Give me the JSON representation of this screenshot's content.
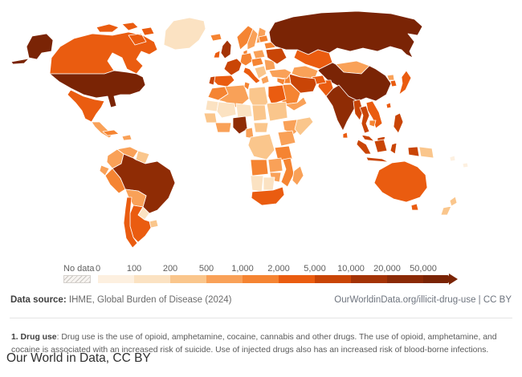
{
  "chart_data": {
    "type": "heatmap",
    "subtype": "choropleth-world-map",
    "topic": "illicit-drug-use",
    "legend": {
      "no_data_label": "No data",
      "bin_edges": [
        "0",
        "100",
        "200",
        "500",
        "1,000",
        "2,000",
        "5,000",
        "10,000",
        "20,000",
        "50,000"
      ],
      "bin_colors": [
        "#fdf0e0",
        "#fbe2c2",
        "#fac68c",
        "#f9a158",
        "#f58432",
        "#ea5c10",
        "#c94506",
        "#a43306",
        "#8b2a06"
      ],
      "arrow_color": "#7a2405",
      "legend_position": "bottom-left",
      "scale": "log-binned"
    },
    "regions": {
      "greenland": {
        "name": "Greenland",
        "color": "#fbe2c2",
        "band": "100-200"
      },
      "canada": {
        "name": "Canada",
        "color": "#ea5c10",
        "band": "2,000-5,000"
      },
      "united_states": {
        "name": "United States",
        "color": "#7a2405",
        "band": ">50,000"
      },
      "mexico": {
        "name": "Mexico",
        "color": "#ea5c10",
        "band": "2,000-5,000"
      },
      "central_america": {
        "name": "Central America",
        "color": "#f9a158",
        "band": "500-1,000"
      },
      "cuba": {
        "name": "Cuba",
        "color": "#f58432",
        "band": "1,000-2,000"
      },
      "hispaniola": {
        "name": "Hispaniola",
        "color": "#f9a158",
        "band": "500-1,000"
      },
      "colombia": {
        "name": "Colombia",
        "color": "#f9a158",
        "band": "500-1,000"
      },
      "venezuela": {
        "name": "Venezuela",
        "color": "#f9a158",
        "band": "500-1,000"
      },
      "guyanas": {
        "name": "Guyanas",
        "color": "#fac68c",
        "band": "200-500"
      },
      "ecuador": {
        "name": "Ecuador",
        "color": "#f9a158",
        "band": "500-1,000"
      },
      "peru": {
        "name": "Peru",
        "color": "#f58432",
        "band": "1,000-2,000"
      },
      "brazil": {
        "name": "Brazil",
        "color": "#8f2c05",
        "band": "20,000-50,000"
      },
      "bolivia": {
        "name": "Bolivia",
        "color": "#f9a158",
        "band": "500-1,000"
      },
      "paraguay": {
        "name": "Paraguay",
        "color": "#fbe2c2",
        "band": "100-200"
      },
      "uruguay": {
        "name": "Uruguay",
        "color": "#fac68c",
        "band": "200-500"
      },
      "argentina": {
        "name": "Argentina",
        "color": "#ea5c10",
        "band": "2,000-5,000"
      },
      "chile": {
        "name": "Chile",
        "color": "#ea5c10",
        "band": "2,000-5,000"
      },
      "iceland": {
        "name": "Iceland",
        "color": "#f58432",
        "band": "1,000-2,000"
      },
      "united_kingdom": {
        "name": "United Kingdom",
        "color": "#a43306",
        "band": "10,000-20,000"
      },
      "ireland": {
        "name": "Ireland",
        "color": "#ea5c10",
        "band": "2,000-5,000"
      },
      "norway": {
        "name": "Norway",
        "color": "#f58432",
        "band": "1,000-2,000"
      },
      "sweden": {
        "name": "Sweden",
        "color": "#f9a158",
        "band": "500-1,000"
      },
      "finland": {
        "name": "Finland",
        "color": "#f9a158",
        "band": "500-1,000"
      },
      "denmark": {
        "name": "Denmark",
        "color": "#f58432",
        "band": "1,000-2,000"
      },
      "germany": {
        "name": "Germany",
        "color": "#f58432",
        "band": "1,000-2,000"
      },
      "france": {
        "name": "France",
        "color": "#c94506",
        "band": "5,000-10,000"
      },
      "spain": {
        "name": "Spain",
        "color": "#ea5c10",
        "band": "2,000-5,000"
      },
      "portugal": {
        "name": "Portugal",
        "color": "#c94506",
        "band": "5,000-10,000"
      },
      "italy": {
        "name": "Italy",
        "color": "#ea5c10",
        "band": "2,000-5,000"
      },
      "poland": {
        "name": "Poland",
        "color": "#f9a158",
        "band": "500-1,000"
      },
      "central_europe": {
        "name": "Central Europe",
        "color": "#f58432",
        "band": "1,000-2,000"
      },
      "balkans": {
        "name": "Balkans",
        "color": "#fac68c",
        "band": "200-500"
      },
      "greece": {
        "name": "Greece",
        "color": "#f9a158",
        "band": "500-1,000"
      },
      "romania_bulgaria": {
        "name": "Romania / Bulgaria",
        "color": "#f9a158",
        "band": "500-1,000"
      },
      "ukraine": {
        "name": "Ukraine",
        "color": "#c94506",
        "band": "5,000-10,000"
      },
      "belarus": {
        "name": "Belarus",
        "color": "#f58432",
        "band": "1,000-2,000"
      },
      "baltics": {
        "name": "Baltic states",
        "color": "#f58432",
        "band": "1,000-2,000"
      },
      "russia": {
        "name": "Russia",
        "color": "#7a2405",
        "band": ">50,000"
      },
      "kazakhstan": {
        "name": "Kazakhstan",
        "color": "#ea5c10",
        "band": "2,000-5,000"
      },
      "central_asia": {
        "name": "Central Asia",
        "color": "#f9a158",
        "band": "500-1,000"
      },
      "mongolia": {
        "name": "Mongolia",
        "color": "#f9a158",
        "band": "500-1,000"
      },
      "china": {
        "name": "China",
        "color": "#7a2405",
        "band": ">50,000"
      },
      "japan": {
        "name": "Japan",
        "color": "#ea5c10",
        "band": "2,000-5,000"
      },
      "north_korea": {
        "name": "North Korea",
        "color": "#f9a158",
        "band": "500-1,000"
      },
      "south_korea": {
        "name": "South Korea",
        "color": "#ea5c10",
        "band": "2,000-5,000"
      },
      "taiwan": {
        "name": "Taiwan",
        "color": "#ea5c10",
        "band": "2,000-5,000"
      },
      "india": {
        "name": "India",
        "color": "#8f2c05",
        "band": "20,000-50,000"
      },
      "pakistan": {
        "name": "Pakistan",
        "color": "#ea5c10",
        "band": "2,000-5,000"
      },
      "afghanistan": {
        "name": "Afghanistan",
        "color": "#ea5c10",
        "band": "2,000-5,000"
      },
      "iran": {
        "name": "Iran",
        "color": "#c94506",
        "band": "5,000-10,000"
      },
      "iraq": {
        "name": "Iraq",
        "color": "#f58432",
        "band": "1,000-2,000"
      },
      "turkey": {
        "name": "Turkey",
        "color": "#f9a158",
        "band": "500-1,000"
      },
      "syria": {
        "name": "Syria",
        "color": "#f58432",
        "band": "1,000-2,000"
      },
      "saudi_arabia": {
        "name": "Saudi Arabia",
        "color": "#f58432",
        "band": "1,000-2,000"
      },
      "yemen_oman": {
        "name": "Yemen / Oman",
        "color": "#f9a158",
        "band": "500-1,000"
      },
      "sri_lanka": {
        "name": "Sri Lanka",
        "color": "#ea5c10",
        "band": "2,000-5,000"
      },
      "myanmar": {
        "name": "Myanmar",
        "color": "#c94506",
        "band": "5,000-10,000"
      },
      "thailand": {
        "name": "Thailand",
        "color": "#c94506",
        "band": "5,000-10,000"
      },
      "vietnam_laos": {
        "name": "Vietnam / Laos",
        "color": "#ea5c10",
        "band": "2,000-5,000"
      },
      "cambodia": {
        "name": "Cambodia",
        "color": "#f58432",
        "band": "1,000-2,000"
      },
      "malaysia": {
        "name": "Malaysia",
        "color": "#c94506",
        "band": "5,000-10,000"
      },
      "indonesia": {
        "name": "Indonesia",
        "color": "#c94506",
        "band": "5,000-10,000"
      },
      "philippines": {
        "name": "Philippines",
        "color": "#c94506",
        "band": "5,000-10,000"
      },
      "papua_new_guinea": {
        "name": "Papua New Guinea",
        "color": "#fac68c",
        "band": "200-500"
      },
      "pacific_islands": {
        "name": "Pacific islands",
        "color": "#fdf0e0",
        "band": "0-100"
      },
      "australia": {
        "name": "Australia",
        "color": "#ea5c10",
        "band": "2,000-5,000"
      },
      "new_zealand": {
        "name": "New Zealand",
        "color": "#fac68c",
        "band": "200-500"
      },
      "morocco": {
        "name": "Morocco",
        "color": "#f58432",
        "band": "1,000-2,000"
      },
      "algeria": {
        "name": "Algeria",
        "color": "#f9a158",
        "band": "500-1,000"
      },
      "tunisia": {
        "name": "Tunisia",
        "color": "#f58432",
        "band": "1,000-2,000"
      },
      "libya": {
        "name": "Libya",
        "color": "#fac68c",
        "band": "200-500"
      },
      "egypt": {
        "name": "Egypt",
        "color": "#ea5c10",
        "band": "2,000-5,000"
      },
      "mauritania": {
        "name": "Mauritania",
        "color": "#fbe2c2",
        "band": "100-200"
      },
      "mali": {
        "name": "Mali",
        "color": "#fbe2c2",
        "band": "100-200"
      },
      "niger": {
        "name": "Niger",
        "color": "#fbe2c2",
        "band": "100-200"
      },
      "chad": {
        "name": "Chad",
        "color": "#fac68c",
        "band": "200-500"
      },
      "sudan": {
        "name": "Sudan",
        "color": "#fac68c",
        "band": "200-500"
      },
      "ethiopia": {
        "name": "Ethiopia",
        "color": "#f9a158",
        "band": "500-1,000"
      },
      "somalia": {
        "name": "Somalia",
        "color": "#fac68c",
        "band": "200-500"
      },
      "senegal_guinea": {
        "name": "Senegal / Guinea",
        "color": "#fac68c",
        "band": "200-500"
      },
      "ivory_ghana": {
        "name": "Côte d'Ivoire / Ghana",
        "color": "#f9a158",
        "band": "500-1,000"
      },
      "nigeria": {
        "name": "Nigeria",
        "color": "#8f2c05",
        "band": "20,000-50,000"
      },
      "cameroon": {
        "name": "Cameroon",
        "color": "#f9a158",
        "band": "500-1,000"
      },
      "central_african_republic": {
        "name": "Central African Republic",
        "color": "#fac68c",
        "band": "200-500"
      },
      "dr_congo": {
        "name": "DR Congo",
        "color": "#fac68c",
        "band": "200-500"
      },
      "uganda_kenya": {
        "name": "Uganda / Kenya",
        "color": "#f9a158",
        "band": "500-1,000"
      },
      "tanzania": {
        "name": "Tanzania",
        "color": "#f58432",
        "band": "1,000-2,000"
      },
      "angola": {
        "name": "Angola",
        "color": "#f58432",
        "band": "1,000-2,000"
      },
      "zambia": {
        "name": "Zambia",
        "color": "#f9a158",
        "band": "500-1,000"
      },
      "zimbabwe": {
        "name": "Zimbabwe",
        "color": "#f9a158",
        "band": "500-1,000"
      },
      "mozambique": {
        "name": "Mozambique",
        "color": "#f58432",
        "band": "1,000-2,000"
      },
      "namibia": {
        "name": "Namibia",
        "color": "#fbe2c2",
        "band": "100-200"
      },
      "botswana": {
        "name": "Botswana",
        "color": "#fbe2c2",
        "band": "100-200"
      },
      "south_africa": {
        "name": "South Africa",
        "color": "#ea5c10",
        "band": "2,000-5,000"
      },
      "madagascar": {
        "name": "Madagascar",
        "color": "#f9a158",
        "band": "500-1,000"
      }
    }
  },
  "footer": {
    "source_label": "Data source:",
    "source_value": "IHME, Global Burden of Disease (2024)",
    "link_text": "OurWorldinData.org/illicit-drug-use | CC BY"
  },
  "note": {
    "label": "1. Drug use",
    "text": ": Drug use is the use of opioid, amphetamine, cocaine, cannabis and other drugs. The use of opioid, amphetamine, and cocaine is associated with an increased risk of suicide. Use of injected drugs also has an increased risk of blood-borne infections."
  },
  "caption": "Our World in Data, CC BY"
}
